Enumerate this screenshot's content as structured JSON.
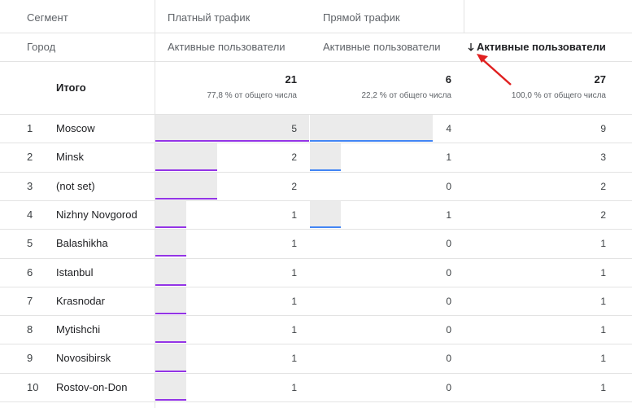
{
  "header": {
    "segment_label": "Сегмент",
    "segments": [
      "Платный трафик",
      "Прямой трафик"
    ],
    "dimension_label": "Город",
    "metric_labels": [
      "Активные пользователи",
      "Активные пользователи",
      "Активные пользователи"
    ]
  },
  "totals": {
    "label": "Итого",
    "values": [
      21,
      6,
      27
    ],
    "shares": [
      "77,8 % от общего числа",
      "22,2 % от общего числа",
      "100,0 % от общего числа"
    ]
  },
  "rows": [
    {
      "rank": 1,
      "city": "Moscow",
      "values": [
        5,
        4,
        9
      ]
    },
    {
      "rank": 2,
      "city": "Minsk",
      "values": [
        2,
        1,
        3
      ]
    },
    {
      "rank": 3,
      "city": "(not set)",
      "values": [
        2,
        0,
        2
      ]
    },
    {
      "rank": 4,
      "city": "Nizhny Novgorod",
      "values": [
        1,
        1,
        2
      ]
    },
    {
      "rank": 5,
      "city": "Balashikha",
      "values": [
        1,
        0,
        1
      ]
    },
    {
      "rank": 6,
      "city": "Istanbul",
      "values": [
        1,
        0,
        1
      ]
    },
    {
      "rank": 7,
      "city": "Krasnodar",
      "values": [
        1,
        0,
        1
      ]
    },
    {
      "rank": 8,
      "city": "Mytishchi",
      "values": [
        1,
        0,
        1
      ]
    },
    {
      "rank": 9,
      "city": "Novosibirsk",
      "values": [
        1,
        0,
        1
      ]
    },
    {
      "rank": 10,
      "city": "Rostov-on-Don",
      "values": [
        1,
        0,
        1
      ]
    }
  ]
}
